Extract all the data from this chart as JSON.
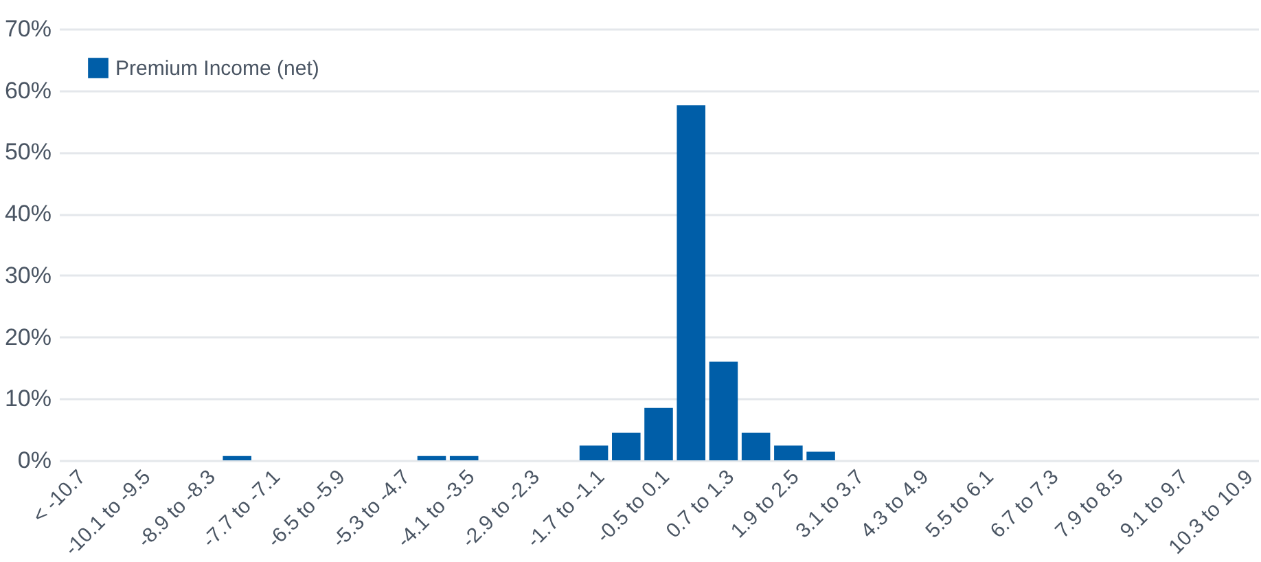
{
  "chart_data": {
    "type": "bar",
    "categories": [
      "< -10.7",
      null,
      "-10.1 to -9.5",
      null,
      "-8.9 to -8.3",
      null,
      "-7.7 to -7.1",
      null,
      "-6.5 to -5.9",
      null,
      "-5.3 to -4.7",
      null,
      "-4.1 to -3.5",
      null,
      "-2.9 to -2.3",
      null,
      "-1.7 to -1.1",
      null,
      "-0.5 to 0.1",
      null,
      "0.7 to 1.3",
      null,
      "1.9 to 2.5",
      null,
      "3.1 to 3.7",
      null,
      "4.3 to 4.9",
      null,
      "5.5 to 6.1",
      null,
      "6.7 to 7.3",
      null,
      "7.9 to 8.5",
      null,
      "9.1 to 9.7",
      null,
      "10.3 to 10.9"
    ],
    "series": [
      {
        "name": "Premium Income (net)",
        "color": "#005ea8",
        "values": [
          0,
          0,
          0,
          0,
          0,
          0.7,
          0,
          0,
          0,
          0,
          0,
          0.7,
          0.7,
          0,
          0,
          0,
          2.4,
          4.5,
          8.5,
          57.6,
          16.0,
          4.5,
          2.4,
          1.4,
          0,
          0,
          0,
          0,
          0,
          0,
          0,
          0,
          0,
          0,
          0,
          0,
          0
        ]
      }
    ],
    "ylim": [
      0,
      70
    ],
    "yticks": [
      {
        "value": 0,
        "label": "0%"
      },
      {
        "value": 10,
        "label": "10%"
      },
      {
        "value": 20,
        "label": "20%"
      },
      {
        "value": 30,
        "label": "30%"
      },
      {
        "value": 40,
        "label": "40%"
      },
      {
        "value": 50,
        "label": "50%"
      },
      {
        "value": 60,
        "label": "60%"
      },
      {
        "value": 70,
        "label": "70%"
      }
    ],
    "grid": "y",
    "legend": "top left"
  }
}
